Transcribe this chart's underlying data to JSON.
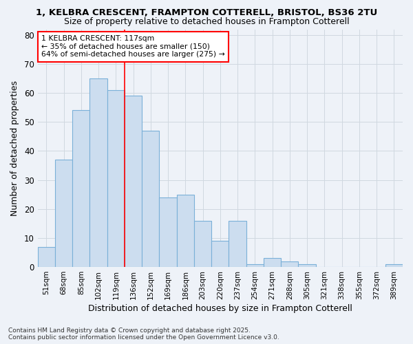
{
  "title1": "1, KELBRA CRESCENT, FRAMPTON COTTERELL, BRISTOL, BS36 2TU",
  "title2": "Size of property relative to detached houses in Frampton Cotterell",
  "xlabel": "Distribution of detached houses by size in Frampton Cotterell",
  "ylabel": "Number of detached properties",
  "categories": [
    "51sqm",
    "68sqm",
    "85sqm",
    "102sqm",
    "119sqm",
    "136sqm",
    "152sqm",
    "169sqm",
    "186sqm",
    "203sqm",
    "220sqm",
    "237sqm",
    "254sqm",
    "271sqm",
    "288sqm",
    "305sqm",
    "321sqm",
    "338sqm",
    "355sqm",
    "372sqm",
    "389sqm"
  ],
  "values": [
    7,
    37,
    54,
    65,
    61,
    59,
    47,
    24,
    25,
    16,
    9,
    16,
    1,
    3,
    2,
    1,
    0,
    0,
    0,
    0,
    1
  ],
  "bar_color": "#ccddef",
  "bar_edge_color": "#7ab0d8",
  "grid_color": "#d0d8e0",
  "bg_color": "#eef2f8",
  "vline_x_index": 4,
  "vline_color": "red",
  "annotation_text": "1 KELBRA CRESCENT: 117sqm\n← 35% of detached houses are smaller (150)\n64% of semi-detached houses are larger (275) →",
  "annotation_box_color": "white",
  "annotation_box_edge": "red",
  "ylim": [
    0,
    82
  ],
  "yticks": [
    0,
    10,
    20,
    30,
    40,
    50,
    60,
    70,
    80
  ],
  "footer": "Contains HM Land Registry data © Crown copyright and database right 2025.\nContains public sector information licensed under the Open Government Licence v3.0."
}
